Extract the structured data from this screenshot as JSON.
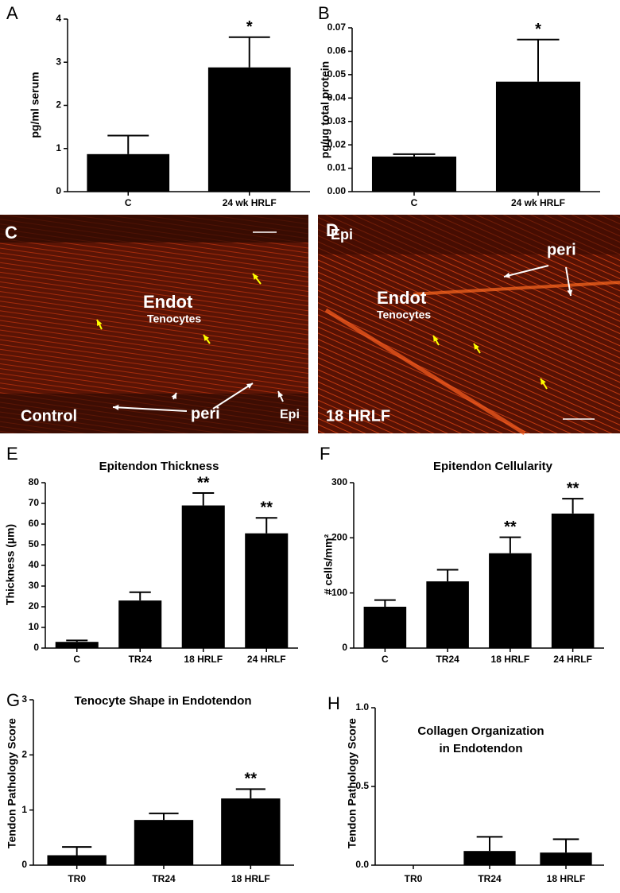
{
  "chart_data": [
    {
      "type": "bar",
      "panel": "A",
      "y_label": "pg/ml serum",
      "categories": [
        "C",
        "24 wk HRLF"
      ],
      "values": [
        0.87,
        2.88
      ],
      "errors": [
        0.43,
        0.7
      ],
      "stars": [
        null,
        "*"
      ],
      "color": "#000000",
      "ylim": [
        0,
        4
      ],
      "yticks": [
        0,
        1,
        2,
        3,
        4
      ]
    },
    {
      "type": "bar",
      "panel": "B",
      "y_label": "pg/µg total protein",
      "categories": [
        "C",
        "24 wk HRLF"
      ],
      "values": [
        0.015,
        0.047
      ],
      "errors": [
        0.001,
        0.018
      ],
      "stars": [
        null,
        "*"
      ],
      "color": "#000000",
      "ylim": [
        0,
        0.07
      ],
      "yticks": [
        {
          "value": 0,
          "label": "0.00"
        },
        {
          "value": 0.01,
          "label": "0.01"
        },
        {
          "value": 0.02,
          "label": "0.02"
        },
        {
          "value": 0.03,
          "label": "0.03"
        },
        {
          "value": 0.04,
          "label": "0.04"
        },
        {
          "value": 0.05,
          "label": "0.05"
        },
        {
          "value": 0.06,
          "label": "0.06"
        },
        {
          "value": 0.07,
          "label": "0.07"
        }
      ]
    },
    {
      "type": "bar",
      "panel": "E",
      "title": [
        "Epitendon Thickness"
      ],
      "y_label": "Thickness (µm)",
      "categories": [
        "C",
        "TR24",
        "18 HRLF",
        "24 HRLF"
      ],
      "values": [
        3,
        23,
        69,
        55.5
      ],
      "errors": [
        0.7,
        4,
        6,
        7.5
      ],
      "stars": [
        null,
        null,
        "**",
        "**"
      ],
      "color": "#000000",
      "ylim": [
        0,
        80
      ],
      "yticks": [
        0,
        10,
        20,
        30,
        40,
        50,
        60,
        70,
        80
      ]
    },
    {
      "type": "bar",
      "panel": "F",
      "title": [
        "Epitendon Cellularity"
      ],
      "y_label": "# cells/mm²",
      "categories": [
        "C",
        "TR24",
        "18 HRLF",
        "24 HRLF"
      ],
      "values": [
        75,
        121,
        172,
        244
      ],
      "errors": [
        12,
        21,
        29,
        27
      ],
      "stars": [
        null,
        null,
        "**",
        "**"
      ],
      "color": "#000000",
      "ylim": [
        0,
        300
      ],
      "yticks": [
        0,
        100,
        200,
        300
      ]
    },
    {
      "type": "bar",
      "panel": "G",
      "title": [
        "Tenocyte  Shape in Endotendon"
      ],
      "y_label": "Tendon Pathology Score",
      "categories": [
        "TR0",
        "TR24",
        "18 HRLF"
      ],
      "values": [
        0.18,
        0.82,
        1.21
      ],
      "errors": [
        0.15,
        0.12,
        0.17
      ],
      "stars": [
        null,
        null,
        "**"
      ],
      "color": "#000000",
      "ylim": [
        0,
        3
      ],
      "yticks": [
        0,
        1,
        2,
        3
      ]
    },
    {
      "type": "bar",
      "panel": "H",
      "title": [
        "Collagen Organization",
        "in  Endotendon"
      ],
      "y_label": "Tendon Pathology Score",
      "categories": [
        "TR0",
        "TR24",
        "18 HRLF"
      ],
      "values": [
        0,
        0.09,
        0.08
      ],
      "errors": [
        0,
        0.09,
        0.085
      ],
      "stars": [
        null,
        null,
        null
      ],
      "color": "#000000",
      "ylim": [
        0,
        1
      ],
      "yticks": [
        {
          "value": 0,
          "label": "0.0"
        },
        {
          "value": 0.5,
          "label": "0.5"
        },
        {
          "value": 1,
          "label": "1.0"
        }
      ]
    }
  ],
  "micrographs": [
    {
      "panel": "C",
      "labels": [
        "Endot",
        "Tenocytes",
        "peri",
        "Epi",
        "Control"
      ]
    },
    {
      "panel": "D",
      "labels": [
        "Epi",
        "peri",
        "Endot",
        "Tenocytes",
        "18 HRLF"
      ]
    }
  ]
}
